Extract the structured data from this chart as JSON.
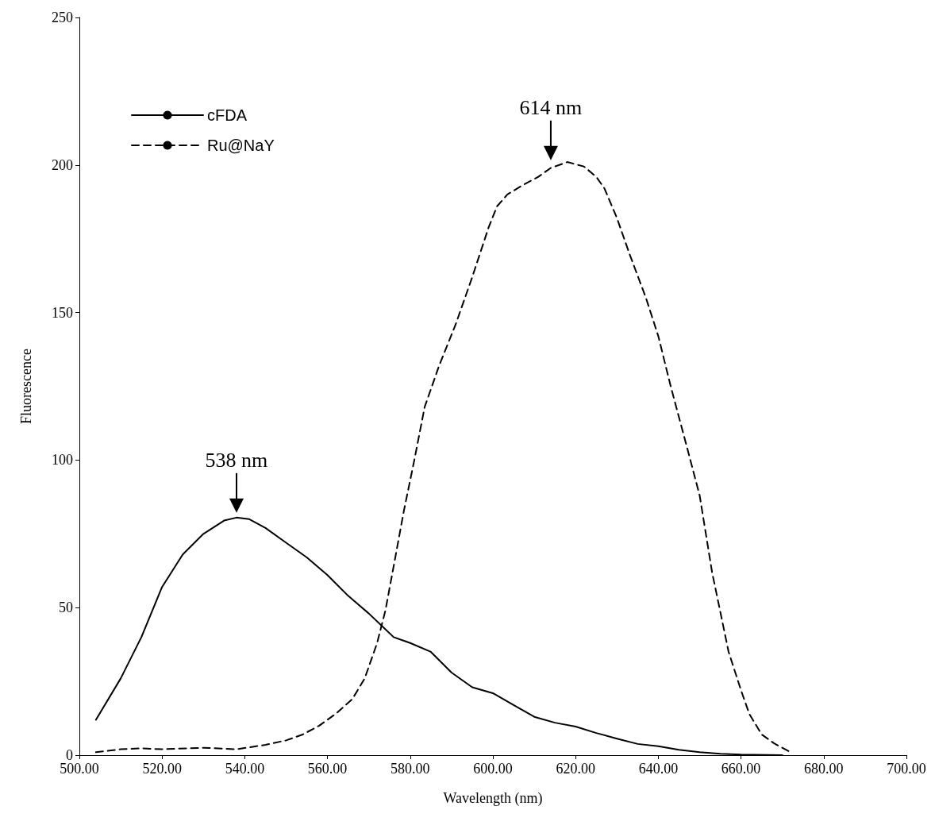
{
  "chart_data": {
    "type": "line",
    "xlabel": "Wavelength (nm)",
    "ylabel": "Fluorescence",
    "xlim": [
      500,
      700
    ],
    "xticks": [
      {
        "value": 500,
        "label": "500.00"
      },
      {
        "value": 520,
        "label": "520.00"
      },
      {
        "value": 540,
        "label": "540.00"
      },
      {
        "value": 560,
        "label": "560.00"
      },
      {
        "value": 580,
        "label": "580.00"
      },
      {
        "value": 600,
        "label": "600.00"
      },
      {
        "value": 620,
        "label": "620.00"
      },
      {
        "value": 640,
        "label": "640.00"
      },
      {
        "value": 660,
        "label": "660.00"
      },
      {
        "value": 680,
        "label": "680.00"
      },
      {
        "value": 700,
        "label": "700.00"
      }
    ],
    "ylim": [
      0,
      250
    ],
    "yticks": [
      0,
      50,
      100,
      150,
      200,
      250
    ],
    "grid": false,
    "legend": "top left",
    "marker": "none",
    "series": [
      {
        "name": "cFDA",
        "color": "#000000",
        "line_style": "solid",
        "x": [
          504,
          510,
          515,
          520,
          525,
          530,
          535,
          538,
          541,
          545,
          550,
          555,
          560,
          565,
          570,
          573,
          576,
          580,
          585,
          590,
          595,
          600,
          605,
          610,
          615,
          620,
          625,
          630,
          635,
          640,
          645,
          650,
          655,
          660,
          670
        ],
        "values": [
          12,
          26,
          40,
          57,
          68,
          75,
          79.5,
          80.5,
          80,
          77,
          72,
          67,
          61,
          54,
          48,
          44,
          40,
          38,
          35,
          28,
          23,
          21,
          17,
          13,
          11,
          9.7,
          7.5,
          5.6,
          3.8,
          3,
          1.8,
          1,
          0.5,
          0.2,
          0
        ]
      },
      {
        "name": "Ru@NaY",
        "color": "#000000",
        "line_style": "dashed",
        "x": [
          504,
          510,
          515,
          520,
          530,
          538,
          545,
          550,
          554,
          558,
          562,
          566,
          569,
          572,
          574,
          576,
          578.5,
          581,
          583.5,
          587,
          591,
          595,
          599,
          601,
          603.5,
          607,
          611,
          614,
          618,
          622,
          625,
          627,
          630,
          633,
          637,
          640,
          643,
          647,
          650,
          653,
          657,
          660,
          662,
          665,
          668,
          672
        ],
        "values": [
          1,
          2,
          2.3,
          2,
          2.5,
          2,
          3.5,
          5,
          7,
          10,
          14,
          19,
          26,
          38,
          49,
          64,
          83,
          100,
          118,
          132,
          146,
          162,
          179,
          186,
          190,
          193,
          196,
          199,
          201,
          199.5,
          196,
          192,
          182,
          170,
          155,
          142,
          125,
          104,
          88,
          62,
          35,
          22,
          14,
          7,
          4,
          1
        ]
      }
    ],
    "annotations": [
      {
        "text": "538 nm",
        "x": 538,
        "y": 80.5
      },
      {
        "text": "614 nm",
        "x": 614,
        "y": 200
      }
    ]
  }
}
